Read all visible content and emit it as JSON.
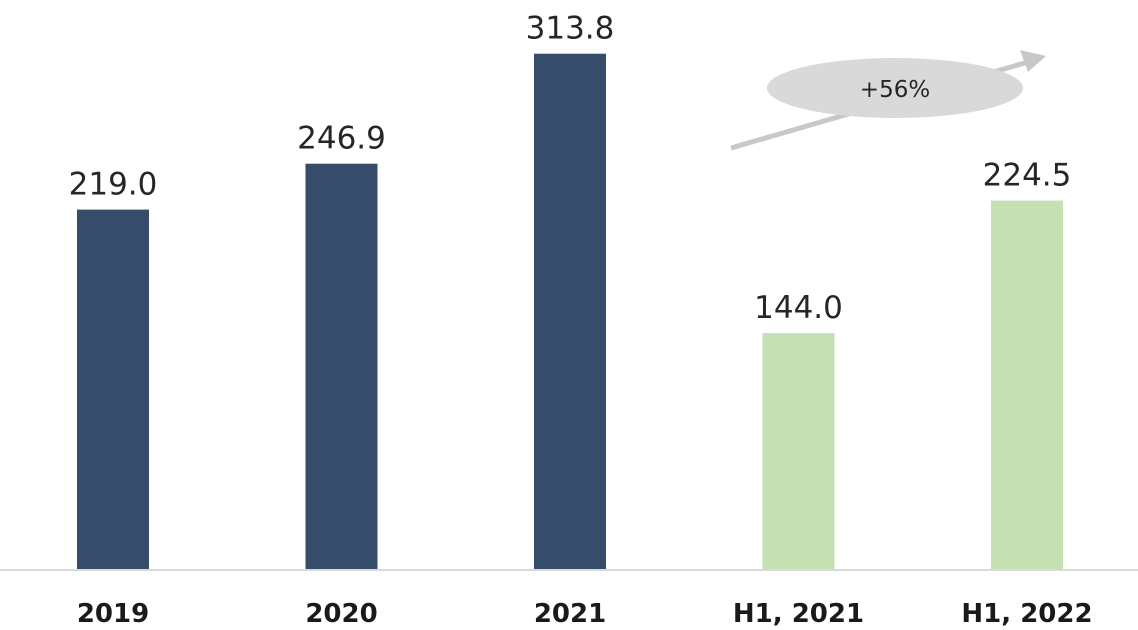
{
  "chart_data": {
    "type": "bar",
    "title": "",
    "xlabel": "",
    "ylabel": "",
    "categories": [
      "2019",
      "2020",
      "2021",
      "H1, 2021",
      "H1, 2022"
    ],
    "values": [
      219.0,
      246.9,
      313.8,
      144.0,
      224.5
    ],
    "value_labels": [
      "219.0",
      "246.9",
      "313.8",
      "144.0",
      "224.5"
    ],
    "bar_colors": [
      "#374c6b",
      "#374c6b",
      "#374c6b",
      "#c5e0b3",
      "#c5e0b3"
    ],
    "ylim": [
      0,
      330
    ],
    "grid": false,
    "annotations": [
      {
        "text": "+56%",
        "from": "H1, 2021",
        "to": "H1, 2022"
      }
    ]
  },
  "colors": {
    "annual_bar": "#374c6b",
    "half_year_bar": "#c5e0b3",
    "axis": "#d9d9d9",
    "annotation_arrow": "#c8c8c8",
    "annotation_bubble": "#d9d9d9"
  }
}
